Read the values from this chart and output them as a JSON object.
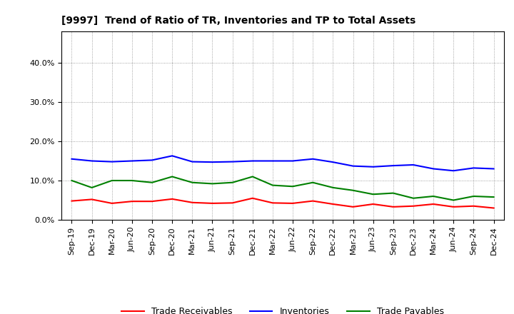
{
  "title": "[9997]  Trend of Ratio of TR, Inventories and TP to Total Assets",
  "labels": [
    "Sep-19",
    "Dec-19",
    "Mar-20",
    "Jun-20",
    "Sep-20",
    "Dec-20",
    "Mar-21",
    "Jun-21",
    "Sep-21",
    "Dec-21",
    "Mar-22",
    "Jun-22",
    "Sep-22",
    "Dec-22",
    "Mar-23",
    "Jun-23",
    "Sep-23",
    "Dec-23",
    "Mar-24",
    "Jun-24",
    "Sep-24",
    "Dec-24"
  ],
  "trade_receivables": [
    0.048,
    0.052,
    0.042,
    0.047,
    0.047,
    0.053,
    0.044,
    0.042,
    0.043,
    0.055,
    0.043,
    0.042,
    0.048,
    0.04,
    0.033,
    0.04,
    0.033,
    0.035,
    0.04,
    0.033,
    0.035,
    0.03
  ],
  "inventories": [
    0.155,
    0.15,
    0.148,
    0.15,
    0.152,
    0.163,
    0.148,
    0.147,
    0.148,
    0.15,
    0.15,
    0.15,
    0.155,
    0.147,
    0.137,
    0.135,
    0.138,
    0.14,
    0.13,
    0.125,
    0.132,
    0.13
  ],
  "trade_payables": [
    0.1,
    0.082,
    0.1,
    0.1,
    0.095,
    0.11,
    0.095,
    0.092,
    0.095,
    0.11,
    0.088,
    0.085,
    0.095,
    0.082,
    0.075,
    0.065,
    0.068,
    0.055,
    0.06,
    0.05,
    0.06,
    0.058
  ],
  "line_colors": {
    "trade_receivables": "#ff0000",
    "inventories": "#0000ff",
    "trade_payables": "#008000"
  },
  "ylim": [
    0.0,
    0.48
  ],
  "yticks": [
    0.0,
    0.1,
    0.2,
    0.3,
    0.4
  ],
  "background_color": "#ffffff",
  "grid_color": "#888888",
  "legend_labels": [
    "Trade Receivables",
    "Inventories",
    "Trade Payables"
  ]
}
